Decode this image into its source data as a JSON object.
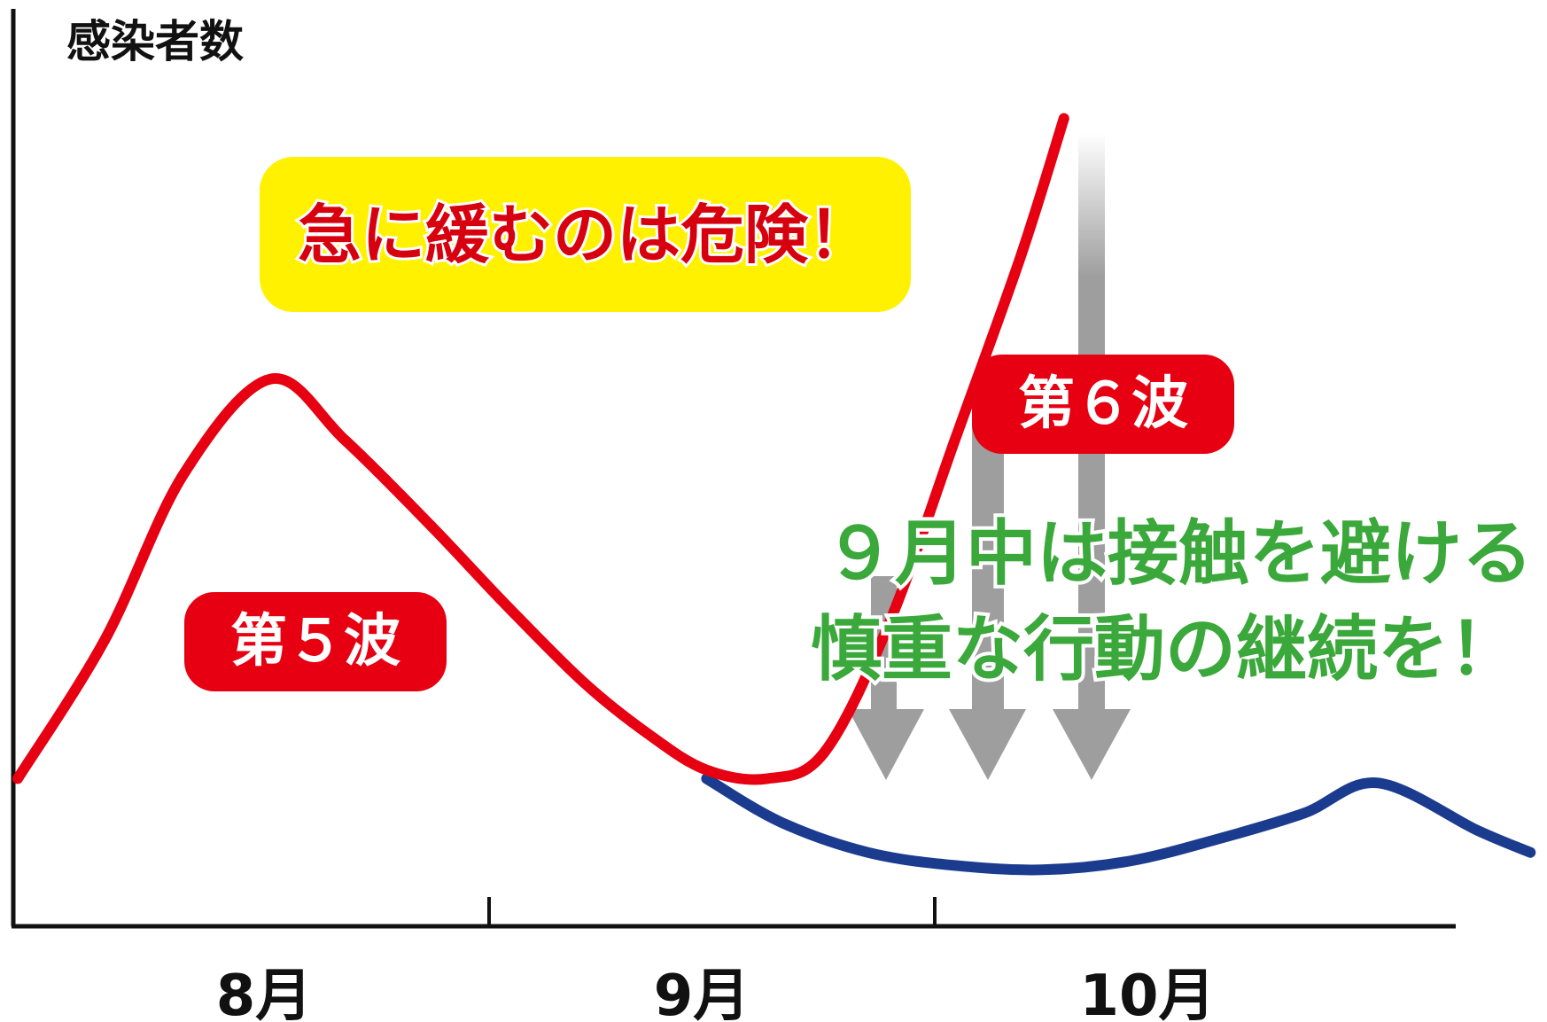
{
  "chart_data": {
    "type": "line",
    "title": "",
    "ylabel": "感染者数",
    "xlabel": "",
    "categories": [
      "8月",
      "9月",
      "10月"
    ],
    "x_range_months": [
      0,
      3
    ],
    "ylim": [
      0,
      100
    ],
    "series": [
      {
        "name": "第５波",
        "color": "#e60012",
        "points": [
          [
            0.0,
            17
          ],
          [
            0.2,
            33
          ],
          [
            0.38,
            52
          ],
          [
            0.58,
            63
          ],
          [
            0.75,
            56
          ],
          [
            0.95,
            46
          ],
          [
            1.12,
            37
          ],
          [
            1.3,
            28
          ],
          [
            1.45,
            22
          ],
          [
            1.58,
            18
          ],
          [
            1.72,
            17
          ],
          [
            1.85,
            20
          ],
          [
            2.0,
            35
          ],
          [
            2.15,
            56
          ],
          [
            2.3,
            77
          ],
          [
            2.4,
            93
          ]
        ]
      },
      {
        "name": "",
        "color": "#1b3b8f",
        "points": [
          [
            1.58,
            17
          ],
          [
            1.75,
            12
          ],
          [
            1.95,
            8.5
          ],
          [
            2.15,
            7
          ],
          [
            2.35,
            6.5
          ],
          [
            2.55,
            7.5
          ],
          [
            2.75,
            10
          ],
          [
            2.95,
            13
          ],
          [
            3.12,
            16.5
          ],
          [
            3.35,
            11
          ],
          [
            3.47,
            8.5
          ]
        ]
      }
    ],
    "annotations": {
      "warning": "急に緩むのは危険！",
      "wave5": "第５波",
      "wave6": "第６波",
      "message_line1": "９月中は接触を避ける",
      "message_line2": "慎重な行動の継続を！"
    },
    "colors": {
      "accent_red": "#e60012",
      "highlight_yellow": "#fff100",
      "message_green": "#3aa83a",
      "arrow_gray": "#9e9e9e",
      "axis": "#111111"
    }
  }
}
